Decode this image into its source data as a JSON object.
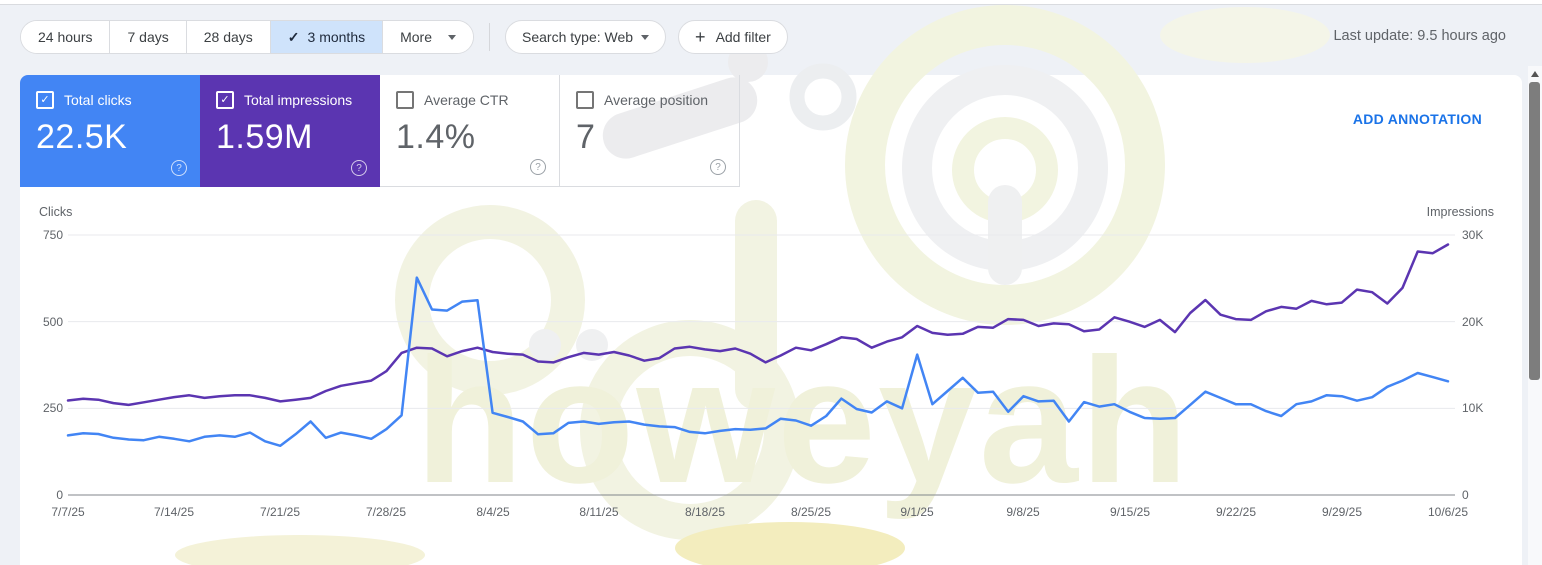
{
  "icons": {
    "check": "✓",
    "plus": "+",
    "question": "?"
  },
  "toolbar": {
    "date_filters": [
      {
        "label": "24 hours",
        "selected": false
      },
      {
        "label": "7 days",
        "selected": false
      },
      {
        "label": "28 days",
        "selected": false
      },
      {
        "label": "3 months",
        "selected": true
      },
      {
        "label": "More",
        "selected": false
      }
    ],
    "search_type_label": "Search type: Web",
    "add_filter_label": "Add filter",
    "last_update": "Last update: 9.5 hours ago"
  },
  "metrics": [
    {
      "label": "Total clicks",
      "value": "22.5K",
      "checked": true,
      "bg": "#4285f4"
    },
    {
      "label": "Total impressions",
      "value": "1.59M",
      "checked": true,
      "bg": "#5b35b1"
    },
    {
      "label": "Average CTR",
      "value": "1.4%",
      "checked": false,
      "bg": "#ffffff"
    },
    {
      "label": "Average position",
      "value": "7",
      "checked": false,
      "bg": "#ffffff"
    }
  ],
  "add_annotation_label": "ADD ANNOTATION",
  "watermark": {
    "text": "howeyah"
  },
  "chart_data": {
    "type": "line",
    "x_start": "7/7/25",
    "x_end": "10/6/25",
    "points": 92,
    "x_tick_labels": [
      "7/7/25",
      "7/14/25",
      "7/21/25",
      "7/28/25",
      "8/4/25",
      "8/11/25",
      "8/18/25",
      "8/25/25",
      "9/1/25",
      "9/8/25",
      "9/15/25",
      "9/22/25",
      "9/29/25",
      "10/6/25"
    ],
    "left_axis": {
      "label": "Clicks",
      "ticks": [
        "750",
        "500",
        "250",
        "0"
      ],
      "range": [
        0,
        750
      ]
    },
    "right_axis": {
      "label": "Impressions",
      "ticks": [
        "30K",
        "20K",
        "10K",
        "0"
      ],
      "range": [
        0,
        30000
      ]
    },
    "grid": true,
    "legend": "none",
    "series": [
      {
        "name": "Total clicks",
        "axis": "left",
        "color": "#4285f4",
        "values": [
          172,
          178,
          176,
          165,
          160,
          158,
          168,
          162,
          155,
          168,
          172,
          168,
          180,
          155,
          142,
          175,
          212,
          165,
          180,
          172,
          162,
          190,
          230,
          627,
          535,
          532,
          558,
          562,
          237,
          225,
          212,
          175,
          178,
          208,
          212,
          205,
          210,
          212,
          203,
          198,
          196,
          182,
          178,
          185,
          190,
          188,
          192,
          220,
          215,
          200,
          228,
          278,
          248,
          238,
          270,
          250,
          405,
          262,
          300,
          338,
          295,
          298,
          240,
          285,
          270,
          272,
          212,
          268,
          255,
          262,
          240,
          222,
          220,
          222,
          260,
          298,
          280,
          262,
          262,
          242,
          228,
          262,
          270,
          288,
          285,
          272,
          282,
          312,
          330,
          352,
          340,
          328
        ]
      },
      {
        "name": "Total impressions",
        "axis": "right",
        "color": "#5b35b1",
        "values": [
          10900,
          11100,
          11000,
          10600,
          10400,
          10700,
          11000,
          11300,
          11500,
          11200,
          11400,
          11500,
          11500,
          11200,
          10800,
          11000,
          11200,
          12000,
          12600,
          12900,
          13200,
          14300,
          16400,
          17000,
          16900,
          16000,
          16600,
          17000,
          16500,
          16300,
          16200,
          15400,
          15300,
          15900,
          16400,
          16200,
          16500,
          16100,
          15500,
          15800,
          16900,
          17100,
          16800,
          16600,
          16900,
          16300,
          15300,
          16100,
          17000,
          16700,
          17400,
          18200,
          18000,
          17000,
          17700,
          18200,
          19500,
          18700,
          18500,
          18600,
          19400,
          19300,
          20300,
          20200,
          19500,
          19800,
          19700,
          18900,
          19100,
          20500,
          20000,
          19400,
          20200,
          18800,
          21000,
          22500,
          20800,
          20300,
          20200,
          21200,
          21700,
          21500,
          22400,
          22000,
          22200,
          23700,
          23400,
          22100,
          23900,
          28100,
          27900,
          28900
        ]
      }
    ]
  }
}
